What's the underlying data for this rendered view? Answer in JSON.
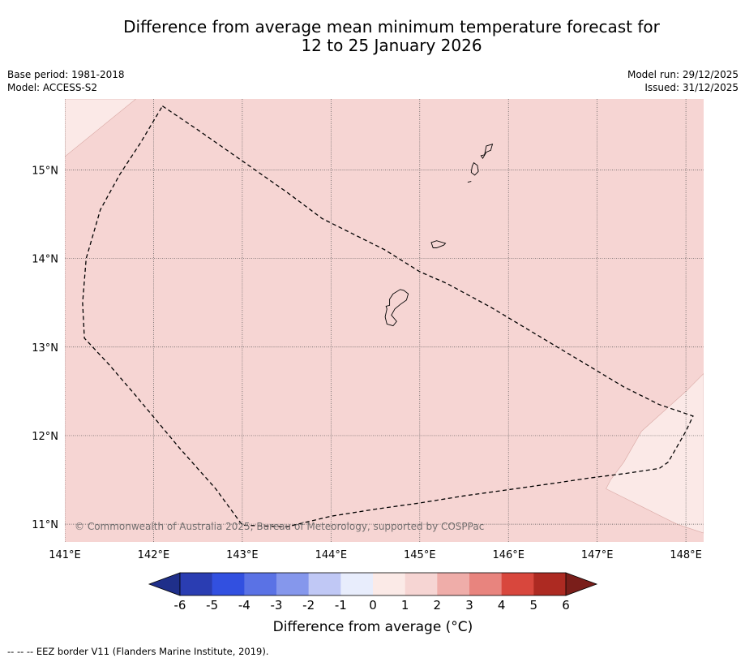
{
  "title": {
    "line1": "Difference from average mean minimum temperature forecast for",
    "line2": "12 to 25 January 2026"
  },
  "meta": {
    "base_period": "Base period: 1981-2018",
    "model": "Model: ACCESS-S2",
    "model_run": "Model run: 29/12/2025",
    "issued": "Issued: 31/12/2025"
  },
  "map": {
    "lon_range": [
      141.0,
      148.2
    ],
    "lat_range": [
      10.8,
      15.8
    ],
    "lon_ticks": [
      141,
      142,
      143,
      144,
      145,
      146,
      147,
      148
    ],
    "lon_labels": [
      "141°E",
      "142°E",
      "143°E",
      "144°E",
      "145°E",
      "146°E",
      "147°E",
      "148°E"
    ],
    "lat_ticks": [
      15,
      14,
      13,
      12,
      11
    ],
    "lat_labels": [
      "15°N",
      "14°N",
      "13°N",
      "12°N",
      "11°N"
    ],
    "background_class_color": "#f6d5d3",
    "lower_class_color": "#fbe9e7",
    "copyright": "© Commonwealth of Australia 2025, Bureau of Meteorology, supported by COSPPac",
    "eez_border": [
      [
        142.1,
        15.72
      ],
      [
        142.5,
        15.45
      ],
      [
        143.0,
        15.1
      ],
      [
        143.5,
        14.75
      ],
      [
        143.9,
        14.45
      ],
      [
        144.2,
        14.3
      ],
      [
        144.6,
        14.1
      ],
      [
        145.0,
        13.85
      ],
      [
        145.3,
        13.72
      ],
      [
        145.8,
        13.45
      ],
      [
        146.3,
        13.15
      ],
      [
        146.8,
        12.85
      ],
      [
        147.3,
        12.55
      ],
      [
        147.7,
        12.35
      ],
      [
        148.08,
        12.22
      ],
      [
        148.0,
        12.05
      ],
      [
        147.8,
        11.7
      ],
      [
        147.7,
        11.63
      ],
      [
        147.3,
        11.57
      ],
      [
        146.9,
        11.52
      ],
      [
        146.5,
        11.46
      ],
      [
        146.0,
        11.39
      ],
      [
        145.5,
        11.32
      ],
      [
        145.0,
        11.24
      ],
      [
        144.5,
        11.17
      ],
      [
        144.0,
        11.09
      ],
      [
        143.5,
        10.97
      ],
      [
        143.0,
        10.99
      ],
      [
        142.7,
        11.4
      ],
      [
        142.3,
        11.85
      ],
      [
        141.8,
        12.45
      ],
      [
        141.5,
        12.8
      ],
      [
        141.22,
        13.1
      ],
      [
        141.2,
        13.5
      ],
      [
        141.24,
        14.0
      ],
      [
        141.4,
        14.55
      ],
      [
        141.62,
        14.95
      ],
      [
        141.85,
        15.3
      ],
      [
        142.1,
        15.72
      ]
    ],
    "islands": {
      "guam": [
        [
          144.7,
          13.6
        ],
        [
          144.78,
          13.65
        ],
        [
          144.82,
          13.64
        ],
        [
          144.87,
          13.6
        ],
        [
          144.85,
          13.53
        ],
        [
          144.78,
          13.48
        ],
        [
          144.72,
          13.43
        ],
        [
          144.68,
          13.36
        ],
        [
          144.74,
          13.29
        ],
        [
          144.7,
          13.24
        ],
        [
          144.63,
          13.26
        ],
        [
          144.61,
          13.34
        ],
        [
          144.63,
          13.43
        ],
        [
          144.62,
          13.46
        ],
        [
          144.66,
          13.47
        ],
        [
          144.66,
          13.54
        ],
        [
          144.7,
          13.6
        ]
      ],
      "rota": [
        [
          145.13,
          14.18
        ],
        [
          145.19,
          14.2
        ],
        [
          145.29,
          14.17
        ],
        [
          145.27,
          14.15
        ],
        [
          145.19,
          14.12
        ],
        [
          145.15,
          14.12
        ],
        [
          145.13,
          14.18
        ]
      ],
      "tinian": [
        [
          145.61,
          15.08
        ],
        [
          145.65,
          15.05
        ],
        [
          145.66,
          14.98
        ],
        [
          145.62,
          14.94
        ],
        [
          145.58,
          14.97
        ],
        [
          145.59,
          15.04
        ],
        [
          145.61,
          15.08
        ]
      ],
      "saipan": [
        [
          145.75,
          15.27
        ],
        [
          145.82,
          15.29
        ],
        [
          145.8,
          15.22
        ],
        [
          145.75,
          15.2
        ],
        [
          145.71,
          15.13
        ],
        [
          145.69,
          15.16
        ],
        [
          145.73,
          15.17
        ],
        [
          145.75,
          15.27
        ]
      ],
      "aguijan": [
        [
          145.54,
          14.86
        ],
        [
          145.58,
          14.87
        ]
      ]
    },
    "lower_zones": [
      [
        [
          141.0,
          15.8
        ],
        [
          141.0,
          15.15
        ],
        [
          141.8,
          15.8
        ]
      ],
      [
        [
          148.2,
          12.7
        ],
        [
          148.0,
          12.5
        ],
        [
          147.5,
          12.05
        ],
        [
          147.3,
          11.7
        ],
        [
          147.15,
          11.5
        ],
        [
          147.1,
          11.4
        ],
        [
          147.5,
          11.2
        ],
        [
          147.9,
          11.0
        ],
        [
          148.2,
          10.9
        ]
      ]
    ]
  },
  "colorbar": {
    "title": "Difference from average (°C)",
    "tick_labels": [
      "-6",
      "-5",
      "-4",
      "-3",
      "-2",
      "-1",
      "0",
      "1",
      "2",
      "3",
      "4",
      "5",
      "6"
    ],
    "colors": [
      "#2a3db2",
      "#3250e0",
      "#5a72e5",
      "#8597ec",
      "#c0c8f5",
      "#e8edfc",
      "#fbeae7",
      "#f6d5d3",
      "#efada9",
      "#e8847e",
      "#d8473d",
      "#ad2a22"
    ],
    "extend_low_color": "#1f2f8a",
    "extend_high_color": "#7a1e1a"
  },
  "footnote": "--  --  -- EEZ border V11 (Flanders Marine Institute, 2019)."
}
